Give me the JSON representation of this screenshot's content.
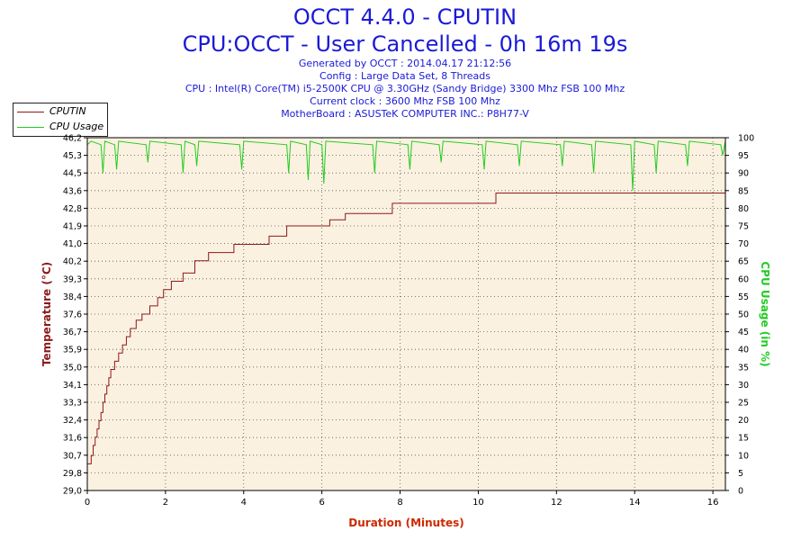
{
  "header": {
    "title": "OCCT 4.4.0 - CPUTIN",
    "subtitle": "CPU:OCCT - User Cancelled - 0h 16m 19s",
    "lines": [
      "Generated by OCCT : 2014.04.17 21:12:56",
      "Config : Large Data Set, 8 Threads",
      "CPU : Intel(R) Core(TM) i5-2500K CPU @ 3.30GHz (Sandy Bridge) 3300 Mhz FSB 100 Mhz",
      "Current clock : 3600 Mhz FSB 100 Mhz",
      "MotherBoard : ASUSTeK COMPUTER INC.: P8H77-V"
    ]
  },
  "colors": {
    "background": "#ffffff",
    "plot_bg": "#fbf1e0",
    "temp": "#8b1a1a",
    "usage": "#22cc22",
    "title": "#1a1ad6",
    "xlabel": "#cc2a00"
  },
  "chart_data": {
    "type": "line",
    "xlabel": "Duration (Minutes)",
    "ylabel_left": "Temperature (°C)",
    "ylabel_right": "CPU Usage (in %)",
    "xlim": [
      0,
      16.32
    ],
    "x_ticks": [
      "0",
      "2",
      "4",
      "6",
      "8",
      "10",
      "12",
      "14",
      "16"
    ],
    "ylim_left": [
      29.0,
      46.2
    ],
    "y_ticks_left": [
      "29,0",
      "29,8",
      "30,7",
      "31,6",
      "32,4",
      "33,3",
      "34,1",
      "35,0",
      "35,9",
      "36,7",
      "37,6",
      "38,4",
      "39,3",
      "40,2",
      "41,0",
      "41,9",
      "42,8",
      "43,6",
      "44,5",
      "45,3",
      "46,2"
    ],
    "ylim_right": [
      0,
      100
    ],
    "y_ticks_right": [
      "0",
      "5",
      "10",
      "15",
      "20",
      "25",
      "30",
      "35",
      "40",
      "45",
      "50",
      "55",
      "60",
      "65",
      "70",
      "75",
      "80",
      "85",
      "90",
      "95",
      "100"
    ],
    "legend": {
      "position": "top-left",
      "entries": [
        "CPUTIN",
        "CPU Usage"
      ]
    },
    "grid": true,
    "series": [
      {
        "name": "CPUTIN",
        "x": [
          0,
          0.1,
          0.15,
          0.2,
          0.25,
          0.3,
          0.35,
          0.4,
          0.45,
          0.5,
          0.55,
          0.6,
          0.7,
          0.8,
          0.9,
          1.0,
          1.1,
          1.25,
          1.4,
          1.6,
          1.8,
          1.95,
          2.15,
          2.45,
          2.75,
          3.1,
          3.75,
          4.65,
          5.1,
          6.2,
          6.6,
          7.7,
          7.8,
          10.4,
          10.45,
          16.32
        ],
        "y": [
          30.3,
          30.7,
          31.2,
          31.6,
          32.0,
          32.4,
          32.8,
          33.3,
          33.7,
          34.1,
          34.5,
          34.9,
          35.3,
          35.7,
          36.1,
          36.5,
          36.9,
          37.3,
          37.6,
          38.0,
          38.4,
          38.8,
          39.2,
          39.6,
          40.2,
          40.6,
          41.0,
          41.4,
          41.9,
          42.2,
          42.5,
          42.5,
          43.0,
          43.0,
          43.5,
          43.5
        ]
      },
      {
        "name": "CPU Usage",
        "x": [
          0,
          0.1,
          0.35,
          0.4,
          0.45,
          0.7,
          0.75,
          0.8,
          1.5,
          1.55,
          1.6,
          2.4,
          2.45,
          2.5,
          2.75,
          2.8,
          2.85,
          3.9,
          3.95,
          4.0,
          5.1,
          5.15,
          5.2,
          5.6,
          5.65,
          5.7,
          6.0,
          6.05,
          6.1,
          7.3,
          7.35,
          7.4,
          8.2,
          8.25,
          8.3,
          9.0,
          9.05,
          9.1,
          10.1,
          10.15,
          10.2,
          11.0,
          11.05,
          11.1,
          12.1,
          12.15,
          12.2,
          12.9,
          12.95,
          13.0,
          13.9,
          13.95,
          14.0,
          14.5,
          14.55,
          14.6,
          15.3,
          15.35,
          15.4,
          16.2,
          16.25,
          16.32
        ],
        "y": [
          98,
          99,
          98,
          90,
          99,
          98,
          91,
          99,
          98,
          93,
          99,
          98,
          90,
          99,
          98,
          92,
          99,
          98,
          91,
          99,
          98,
          90,
          99,
          98,
          88,
          99,
          98,
          87,
          99,
          98,
          90,
          99,
          98,
          91,
          99,
          98,
          93,
          99,
          98,
          91,
          99,
          98,
          92,
          99,
          98,
          92,
          99,
          98,
          90,
          99,
          98,
          85,
          99,
          98,
          90,
          99,
          98,
          92,
          99,
          98,
          95,
          99
        ]
      }
    ]
  }
}
